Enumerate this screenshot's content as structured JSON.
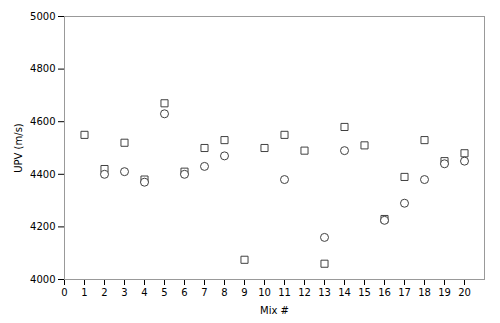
{
  "chart_data": {
    "type": "scatter",
    "x": [
      1,
      2,
      3,
      4,
      5,
      6,
      7,
      8,
      9,
      10,
      11,
      12,
      13,
      14,
      15,
      16,
      17,
      18,
      19,
      20
    ],
    "series": [
      {
        "marker": "square",
        "color": "#404040",
        "values": [
          4550,
          4420,
          4520,
          4380,
          4670,
          4410,
          4500,
          4530,
          4075,
          4500,
          4550,
          4490,
          4060,
          4580,
          4510,
          4230,
          4390,
          4530,
          4450,
          4480
        ]
      },
      {
        "marker": "circle",
        "color": "#404040",
        "values": [
          null,
          4400,
          4410,
          4370,
          4630,
          4400,
          4430,
          4470,
          null,
          null,
          4380,
          null,
          4160,
          4490,
          null,
          4225,
          4290,
          4380,
          4440,
          4450
        ]
      }
    ],
    "xlabel": "Mix #",
    "ylabel": "UPV (m/s)",
    "xlim": [
      0,
      21
    ],
    "ylim": [
      4000,
      5000
    ],
    "xticks": [
      0,
      1,
      2,
      3,
      4,
      5,
      6,
      7,
      8,
      9,
      10,
      11,
      12,
      13,
      14,
      15,
      16,
      17,
      18,
      19,
      20
    ],
    "yticks": [
      4000,
      4200,
      4400,
      4600,
      4800,
      5000
    ],
    "grid": false
  }
}
